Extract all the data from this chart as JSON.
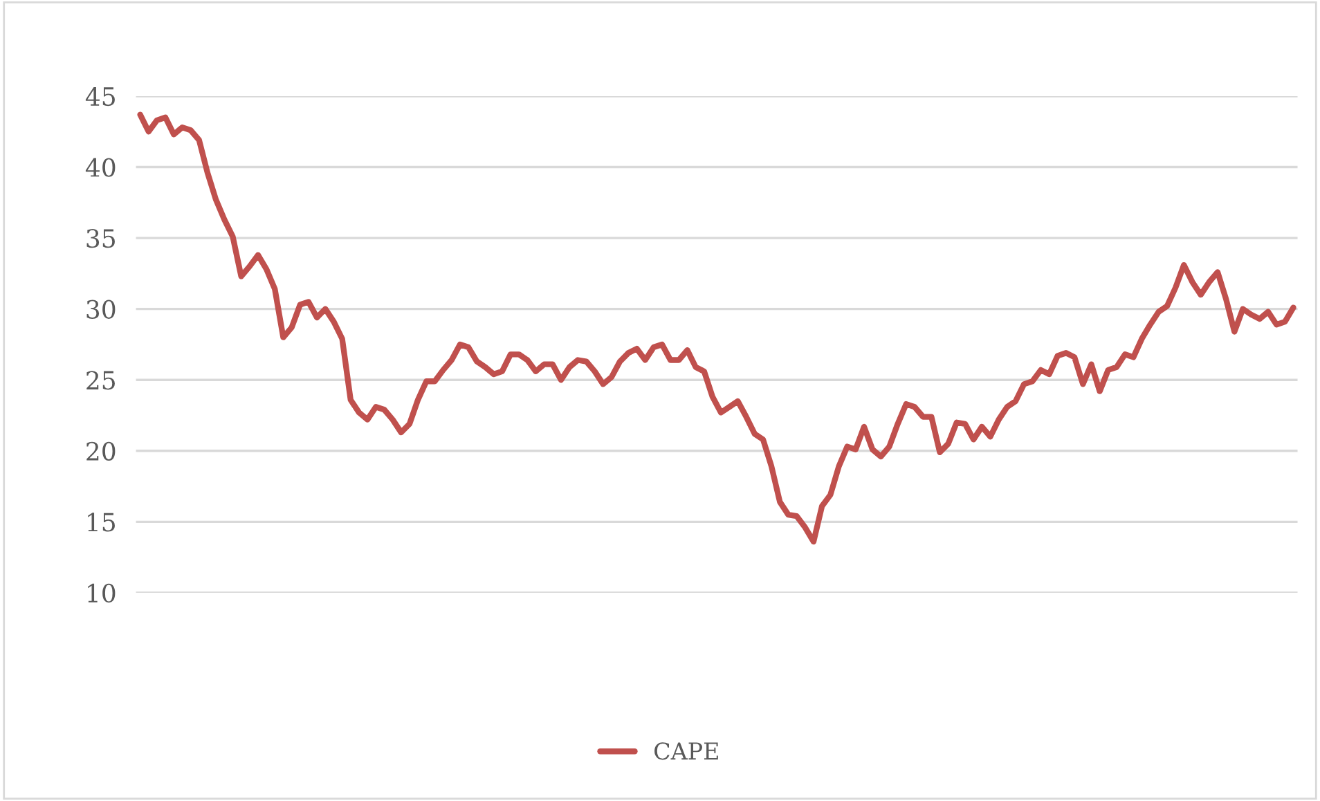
{
  "chart_data": {
    "type": "line",
    "categories": [
      null,
      null,
      null,
      null,
      null,
      null,
      null,
      null,
      null,
      null,
      null,
      null,
      null,
      null,
      null,
      null,
      null,
      null,
      null,
      null,
      null,
      null,
      null,
      null,
      null,
      null,
      null,
      null,
      null,
      null,
      null,
      null,
      null,
      null,
      null,
      null,
      null,
      null,
      null,
      null,
      null,
      null,
      null,
      null,
      null,
      null,
      null,
      null,
      null,
      null,
      null,
      null,
      null,
      null,
      null,
      null,
      null,
      null,
      null,
      null,
      null,
      null,
      null,
      null,
      null,
      null,
      null,
      null,
      null,
      null,
      null,
      null,
      null,
      null,
      null,
      null,
      null,
      null,
      null,
      null,
      null,
      null,
      null,
      null,
      null,
      null,
      null,
      null,
      null,
      null,
      null,
      null,
      null,
      null,
      null,
      null,
      null,
      null,
      null,
      null,
      null,
      null,
      null,
      null,
      null,
      null,
      null,
      null,
      null,
      null,
      null,
      null,
      null,
      null,
      null,
      null,
      null,
      null,
      null,
      null,
      null,
      null,
      null,
      null,
      null,
      null,
      null,
      null,
      null,
      null,
      null,
      null,
      null,
      null,
      null,
      null,
      null,
      null
    ],
    "series": [
      {
        "name": "CAPE",
        "color": "#c0504d",
        "values": [
          43.7,
          42.5,
          43.3,
          43.5,
          42.3,
          42.8,
          42.6,
          41.9,
          39.6,
          37.7,
          36.3,
          35.1,
          32.3,
          33.0,
          33.8,
          32.8,
          31.4,
          28.0,
          28.7,
          30.3,
          30.5,
          29.4,
          30.0,
          29.1,
          27.9,
          23.6,
          22.7,
          22.2,
          23.1,
          22.9,
          22.2,
          21.3,
          21.9,
          23.6,
          24.9,
          24.9,
          25.7,
          26.4,
          27.5,
          27.3,
          26.3,
          25.9,
          25.4,
          25.6,
          26.8,
          26.8,
          26.4,
          25.6,
          26.1,
          26.1,
          25.0,
          25.9,
          26.4,
          26.3,
          25.6,
          24.7,
          25.2,
          26.3,
          26.9,
          27.2,
          26.4,
          27.3,
          27.5,
          26.4,
          26.4,
          27.1,
          25.9,
          25.6,
          23.8,
          22.7,
          23.1,
          23.5,
          22.4,
          21.2,
          20.8,
          18.9,
          16.4,
          15.5,
          15.4,
          14.6,
          13.6,
          16.1,
          16.9,
          18.9,
          20.3,
          20.1,
          21.7,
          20.1,
          19.6,
          20.3,
          21.9,
          23.3,
          23.1,
          22.4,
          22.4,
          19.9,
          20.5,
          22.0,
          21.9,
          20.8,
          21.7,
          21.0,
          22.2,
          23.1,
          23.5,
          24.7,
          24.9,
          25.7,
          25.4,
          26.7,
          26.9,
          26.6,
          24.7,
          26.1,
          24.2,
          25.7,
          25.9,
          26.8,
          26.6,
          27.9,
          28.9,
          29.8,
          30.2,
          31.5,
          33.1,
          31.9,
          31.0,
          31.9,
          32.6,
          30.7,
          28.4,
          30.0,
          29.6,
          29.3,
          29.8,
          28.9,
          29.1,
          30.1
        ]
      }
    ],
    "ylim": [
      10,
      45
    ],
    "yticks": [
      10,
      15,
      20,
      25,
      30,
      35,
      40,
      45
    ],
    "grid": "y",
    "legend": "bottom"
  }
}
